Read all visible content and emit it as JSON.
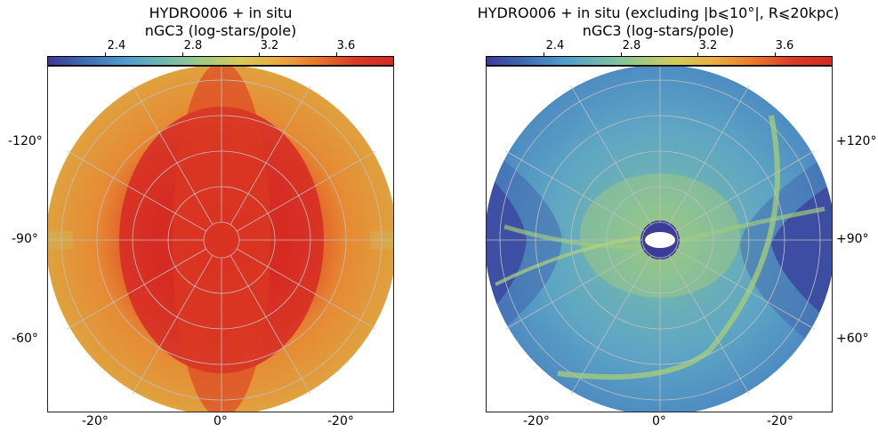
{
  "chart_data": [
    {
      "type": "heatmap",
      "projection": "polar sky map",
      "title": "HYDRO006 + in situ",
      "colorbar_label": "nGC3 (log-stars/pole)",
      "colorbar_ticks": [
        "2.4",
        "2.8",
        "3.2",
        "3.6"
      ],
      "colorbar_range": [
        2.1,
        3.9
      ],
      "left_tick_labels": [
        "-120°",
        "-90°",
        "-60°"
      ],
      "bottom_tick_labels": [
        "-20°",
        "0°",
        "-20°"
      ],
      "value_center": 3.85,
      "value_edge": 3.55
    },
    {
      "type": "heatmap",
      "projection": "polar sky map",
      "title": "HYDRO006 + in situ (excluding |b⩽10°|, R⩽20kpc)",
      "colorbar_label": "nGC3 (log-stars/pole)",
      "colorbar_ticks": [
        "2.4",
        "2.8",
        "3.2",
        "3.6"
      ],
      "colorbar_range": [
        2.1,
        3.9
      ],
      "right_tick_labels": [
        "+120°",
        "+90°",
        "+60°"
      ],
      "bottom_tick_labels": [
        "-20°",
        "0°",
        "-20°"
      ],
      "value_background": 2.7,
      "value_sides": 2.2
    }
  ],
  "colormap": [
    "#3c3c98",
    "#3f6cb4",
    "#4f9ccb",
    "#6fb8b0",
    "#9fcb82",
    "#d4cc57",
    "#e9ab40",
    "#e9772c",
    "#db3a24",
    "#d62a25"
  ]
}
